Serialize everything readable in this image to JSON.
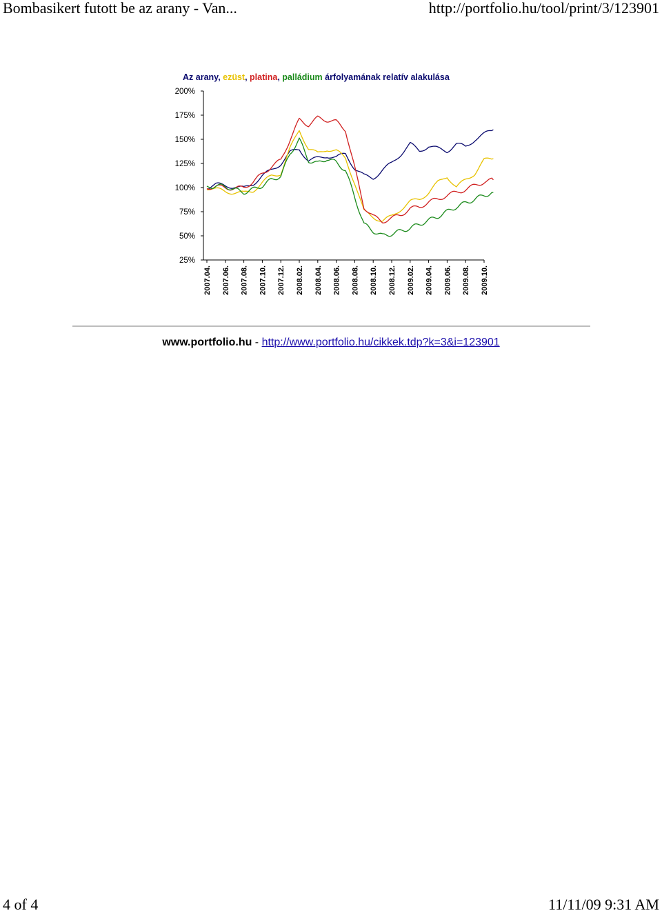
{
  "header": {
    "title": "Bombasikert futott be az arany - Van...",
    "url": "http://portfolio.hu/tool/print/3/123901"
  },
  "footer": {
    "page": "4 of 4",
    "datetime": "11/11/09 9:31 AM"
  },
  "source": {
    "site": "www.portfolio.hu",
    "separator": " - ",
    "url": "http://www.portfolio.hu/cikkek.tdp?k=3&i=123901"
  },
  "chart_data": {
    "type": "line",
    "title_parts": [
      {
        "text": "Az arany",
        "color": "#0a0a6e"
      },
      {
        "text": ", ",
        "color": "#0a0a6e"
      },
      {
        "text": "ezüst",
        "color": "#e8c200"
      },
      {
        "text": ", ",
        "color": "#0a0a6e"
      },
      {
        "text": "platina",
        "color": "#d02020"
      },
      {
        "text": ", ",
        "color": "#0a0a6e"
      },
      {
        "text": "palládium",
        "color": "#1a8a1a"
      },
      {
        "text": " árfolyamának relatív alakulása",
        "color": "#0a0a6e"
      }
    ],
    "y_ticks": [
      "200%",
      "175%",
      "150%",
      "125%",
      "100%",
      "75%",
      "50%",
      "25%"
    ],
    "ylim": [
      25,
      200
    ],
    "x_ticks": [
      "2007.04.",
      "2007.06.",
      "2007.08.",
      "2007.10.",
      "2007.12.",
      "2008.02.",
      "2008.04.",
      "2008.06.",
      "2008.08.",
      "2008.10.",
      "2008.12.",
      "2009.02.",
      "2009.04.",
      "2009.06.",
      "2009.08.",
      "2009.10."
    ],
    "x": [
      0,
      0.5,
      1,
      1.5,
      2,
      2.5,
      3,
      3.5,
      4,
      4.5,
      5,
      5.5,
      6,
      6.5,
      7,
      7.5,
      8,
      8.5,
      9,
      9.5,
      10,
      10.5,
      11,
      11.5,
      12,
      12.5,
      13,
      13.5,
      14,
      14.5,
      15,
      15.5
    ],
    "series": [
      {
        "name": "arany",
        "color": "#0a0a6e",
        "values": [
          100,
          103,
          102,
          101,
          99,
          104,
          112,
          118,
          125,
          136,
          140,
          128,
          130,
          133,
          131,
          135,
          120,
          112,
          110,
          118,
          125,
          135,
          145,
          138,
          143,
          140,
          138,
          145,
          142,
          150,
          155,
          160
        ]
      },
      {
        "name": "ezüst",
        "color": "#e8c200",
        "values": [
          100,
          98,
          96,
          95,
          94,
          97,
          105,
          112,
          115,
          140,
          160,
          140,
          135,
          140,
          138,
          130,
          105,
          75,
          70,
          65,
          70,
          78,
          85,
          88,
          95,
          105,
          112,
          100,
          108,
          115,
          128,
          130
        ]
      },
      {
        "name": "platina",
        "color": "#d02020",
        "values": [
          100,
          101,
          100,
          99,
          100,
          106,
          114,
          122,
          128,
          150,
          170,
          165,
          172,
          170,
          168,
          160,
          120,
          80,
          70,
          65,
          68,
          72,
          78,
          80,
          85,
          88,
          92,
          95,
          98,
          102,
          106,
          108
        ]
      },
      {
        "name": "palládium",
        "color": "#1a8a1a",
        "values": [
          100,
          102,
          101,
          98,
          95,
          98,
          102,
          108,
          112,
          135,
          150,
          128,
          125,
          130,
          126,
          118,
          90,
          62,
          55,
          50,
          52,
          55,
          58,
          62,
          66,
          70,
          75,
          80,
          84,
          88,
          92,
          95
        ]
      }
    ]
  }
}
